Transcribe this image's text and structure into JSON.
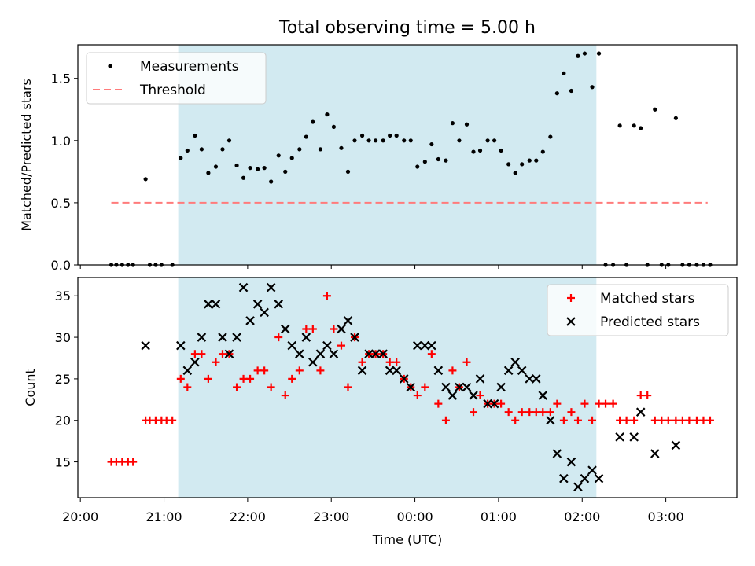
{
  "title": "Total observing time = 5.00 h",
  "colors": {
    "shade": "#add8e6",
    "threshold": "#ff7b7b",
    "matched": "#ff0000",
    "predicted": "#000000",
    "measure": "#000000"
  },
  "x_ticks": [
    "20:00",
    "21:00",
    "22:00",
    "23:00",
    "00:00",
    "01:00",
    "02:00",
    "03:00"
  ],
  "xlabel": "Time (UTC)",
  "chart_data": [
    {
      "type": "scatter",
      "name": "top",
      "ylabel": "Matched/Predicted stars",
      "xlim_hours": [
        19.97,
        27.85
      ],
      "ylim": [
        0,
        1.77
      ],
      "y_ticks": [
        "0.0",
        "0.5",
        "1.0",
        "1.5"
      ],
      "shaded_span_hours": [
        21.17,
        26.17
      ],
      "legend": {
        "position": "upper-left",
        "entries": [
          "Measurements",
          "Threshold"
        ]
      },
      "threshold": {
        "value": 0.5,
        "x_from_hours": 20.37,
        "x_to_hours": 27.5
      },
      "measurements": [
        [
          20.37,
          0
        ],
        [
          20.43,
          0
        ],
        [
          20.5,
          0
        ],
        [
          20.57,
          0
        ],
        [
          20.63,
          0
        ],
        [
          20.78,
          0.69
        ],
        [
          20.83,
          0
        ],
        [
          20.9,
          0
        ],
        [
          20.97,
          0
        ],
        [
          21.1,
          0
        ],
        [
          21.2,
          0.86
        ],
        [
          21.28,
          0.92
        ],
        [
          21.37,
          1.04
        ],
        [
          21.45,
          0.93
        ],
        [
          21.53,
          0.74
        ],
        [
          21.62,
          0.79
        ],
        [
          21.7,
          0.93
        ],
        [
          21.78,
          1.0
        ],
        [
          21.87,
          0.8
        ],
        [
          21.95,
          0.7
        ],
        [
          22.03,
          0.78
        ],
        [
          22.12,
          0.77
        ],
        [
          22.2,
          0.78
        ],
        [
          22.28,
          0.67
        ],
        [
          22.37,
          0.88
        ],
        [
          22.45,
          0.75
        ],
        [
          22.53,
          0.86
        ],
        [
          22.62,
          0.93
        ],
        [
          22.7,
          1.03
        ],
        [
          22.78,
          1.15
        ],
        [
          22.87,
          0.93
        ],
        [
          22.95,
          1.21
        ],
        [
          23.03,
          1.11
        ],
        [
          23.12,
          0.94
        ],
        [
          23.2,
          0.75
        ],
        [
          23.28,
          1.0
        ],
        [
          23.37,
          1.04
        ],
        [
          23.45,
          1.0
        ],
        [
          23.53,
          1.0
        ],
        [
          23.62,
          1.0
        ],
        [
          23.7,
          1.04
        ],
        [
          23.78,
          1.04
        ],
        [
          23.87,
          1.0
        ],
        [
          23.95,
          1.0
        ],
        [
          24.03,
          0.79
        ],
        [
          24.12,
          0.83
        ],
        [
          24.2,
          0.97
        ],
        [
          24.28,
          0.85
        ],
        [
          24.37,
          0.84
        ],
        [
          24.45,
          1.14
        ],
        [
          24.53,
          1.0
        ],
        [
          24.62,
          1.13
        ],
        [
          24.7,
          0.91
        ],
        [
          24.78,
          0.92
        ],
        [
          24.87,
          1.0
        ],
        [
          24.95,
          1.0
        ],
        [
          25.03,
          0.92
        ],
        [
          25.12,
          0.81
        ],
        [
          25.2,
          0.74
        ],
        [
          25.28,
          0.81
        ],
        [
          25.37,
          0.84
        ],
        [
          25.45,
          0.84
        ],
        [
          25.53,
          0.91
        ],
        [
          25.62,
          1.03
        ],
        [
          25.7,
          1.38
        ],
        [
          25.78,
          1.54
        ],
        [
          25.87,
          1.4
        ],
        [
          25.95,
          1.68
        ],
        [
          26.03,
          1.7
        ],
        [
          26.12,
          1.43
        ],
        [
          26.2,
          1.7
        ],
        [
          26.28,
          0
        ],
        [
          26.37,
          0
        ],
        [
          26.45,
          1.12
        ],
        [
          26.53,
          0
        ],
        [
          26.62,
          1.12
        ],
        [
          26.7,
          1.1
        ],
        [
          26.78,
          0
        ],
        [
          26.87,
          1.25
        ],
        [
          26.95,
          0
        ],
        [
          27.03,
          0
        ],
        [
          27.12,
          1.18
        ],
        [
          27.2,
          0
        ],
        [
          27.28,
          0
        ],
        [
          27.37,
          0
        ],
        [
          27.45,
          0
        ],
        [
          27.53,
          0
        ]
      ]
    },
    {
      "type": "scatter",
      "name": "bottom",
      "ylabel": "Count",
      "xlim_hours": [
        19.97,
        27.85
      ],
      "ylim": [
        10.7,
        37.2
      ],
      "y_ticks": [
        "15",
        "20",
        "25",
        "30",
        "35"
      ],
      "shaded_span_hours": [
        21.17,
        26.17
      ],
      "legend": {
        "position": "upper-right",
        "entries": [
          "Matched stars",
          "Predicted stars"
        ]
      },
      "series": [
        {
          "name": "Matched stars",
          "marker": "plus",
          "points": [
            [
              20.37,
              15
            ],
            [
              20.43,
              15
            ],
            [
              20.5,
              15
            ],
            [
              20.57,
              15
            ],
            [
              20.63,
              15
            ],
            [
              20.78,
              20
            ],
            [
              20.83,
              20
            ],
            [
              20.9,
              20
            ],
            [
              20.97,
              20
            ],
            [
              21.03,
              20
            ],
            [
              21.1,
              20
            ],
            [
              21.2,
              25
            ],
            [
              21.28,
              24
            ],
            [
              21.37,
              28
            ],
            [
              21.45,
              28
            ],
            [
              21.53,
              25
            ],
            [
              21.62,
              27
            ],
            [
              21.7,
              28
            ],
            [
              21.78,
              28
            ],
            [
              21.87,
              24
            ],
            [
              21.95,
              25
            ],
            [
              22.03,
              25
            ],
            [
              22.12,
              26
            ],
            [
              22.2,
              26
            ],
            [
              22.28,
              24
            ],
            [
              22.37,
              30
            ],
            [
              22.45,
              23
            ],
            [
              22.53,
              25
            ],
            [
              22.62,
              26
            ],
            [
              22.7,
              31
            ],
            [
              22.78,
              31
            ],
            [
              22.87,
              26
            ],
            [
              22.95,
              35
            ],
            [
              23.03,
              31
            ],
            [
              23.12,
              29
            ],
            [
              23.2,
              24
            ],
            [
              23.28,
              30
            ],
            [
              23.37,
              27
            ],
            [
              23.45,
              28
            ],
            [
              23.53,
              28
            ],
            [
              23.62,
              28
            ],
            [
              23.7,
              27
            ],
            [
              23.78,
              27
            ],
            [
              23.87,
              25
            ],
            [
              23.95,
              24
            ],
            [
              24.03,
              23
            ],
            [
              24.12,
              24
            ],
            [
              24.2,
              28
            ],
            [
              24.28,
              22
            ],
            [
              24.37,
              20
            ],
            [
              24.45,
              26
            ],
            [
              24.53,
              24
            ],
            [
              24.62,
              27
            ],
            [
              24.7,
              21
            ],
            [
              24.78,
              23
            ],
            [
              24.87,
              22
            ],
            [
              24.95,
              22
            ],
            [
              25.03,
              22
            ],
            [
              25.12,
              21
            ],
            [
              25.2,
              20
            ],
            [
              25.28,
              21
            ],
            [
              25.37,
              21
            ],
            [
              25.45,
              21
            ],
            [
              25.53,
              21
            ],
            [
              25.62,
              21
            ],
            [
              25.7,
              22
            ],
            [
              25.78,
              20
            ],
            [
              25.87,
              21
            ],
            [
              25.95,
              20
            ],
            [
              26.03,
              22
            ],
            [
              26.12,
              20
            ],
            [
              26.2,
              22
            ],
            [
              26.28,
              22
            ],
            [
              26.37,
              22
            ],
            [
              26.45,
              20
            ],
            [
              26.53,
              20
            ],
            [
              26.62,
              20
            ],
            [
              26.7,
              23
            ],
            [
              26.78,
              23
            ],
            [
              26.87,
              20
            ],
            [
              26.95,
              20
            ],
            [
              27.03,
              20
            ],
            [
              27.12,
              20
            ],
            [
              27.2,
              20
            ],
            [
              27.28,
              20
            ],
            [
              27.37,
              20
            ],
            [
              27.45,
              20
            ],
            [
              27.53,
              20
            ]
          ]
        },
        {
          "name": "Predicted stars",
          "marker": "cross",
          "points": [
            [
              20.78,
              29
            ],
            [
              21.2,
              29
            ],
            [
              21.28,
              26
            ],
            [
              21.37,
              27
            ],
            [
              21.45,
              30
            ],
            [
              21.53,
              34
            ],
            [
              21.62,
              34
            ],
            [
              21.7,
              30
            ],
            [
              21.78,
              28
            ],
            [
              21.87,
              30
            ],
            [
              21.95,
              36
            ],
            [
              22.03,
              32
            ],
            [
              22.12,
              34
            ],
            [
              22.2,
              33
            ],
            [
              22.28,
              36
            ],
            [
              22.37,
              34
            ],
            [
              22.45,
              31
            ],
            [
              22.53,
              29
            ],
            [
              22.62,
              28
            ],
            [
              22.7,
              30
            ],
            [
              22.78,
              27
            ],
            [
              22.87,
              28
            ],
            [
              22.95,
              29
            ],
            [
              23.03,
              28
            ],
            [
              23.12,
              31
            ],
            [
              23.2,
              32
            ],
            [
              23.28,
              30
            ],
            [
              23.37,
              26
            ],
            [
              23.45,
              28
            ],
            [
              23.53,
              28
            ],
            [
              23.62,
              28
            ],
            [
              23.7,
              26
            ],
            [
              23.78,
              26
            ],
            [
              23.87,
              25
            ],
            [
              23.95,
              24
            ],
            [
              24.03,
              29
            ],
            [
              24.12,
              29
            ],
            [
              24.2,
              29
            ],
            [
              24.28,
              26
            ],
            [
              24.37,
              24
            ],
            [
              24.45,
              23
            ],
            [
              24.53,
              24
            ],
            [
              24.62,
              24
            ],
            [
              24.7,
              23
            ],
            [
              24.78,
              25
            ],
            [
              24.87,
              22
            ],
            [
              24.95,
              22
            ],
            [
              25.03,
              24
            ],
            [
              25.12,
              26
            ],
            [
              25.2,
              27
            ],
            [
              25.28,
              26
            ],
            [
              25.37,
              25
            ],
            [
              25.45,
              25
            ],
            [
              25.53,
              23
            ],
            [
              25.62,
              20
            ],
            [
              25.7,
              16
            ],
            [
              25.78,
              13
            ],
            [
              25.87,
              15
            ],
            [
              25.95,
              12
            ],
            [
              26.03,
              13
            ],
            [
              26.12,
              14
            ],
            [
              26.2,
              13
            ],
            [
              26.45,
              18
            ],
            [
              26.62,
              18
            ],
            [
              26.7,
              21
            ],
            [
              26.87,
              16
            ],
            [
              27.12,
              17
            ]
          ]
        }
      ]
    }
  ]
}
